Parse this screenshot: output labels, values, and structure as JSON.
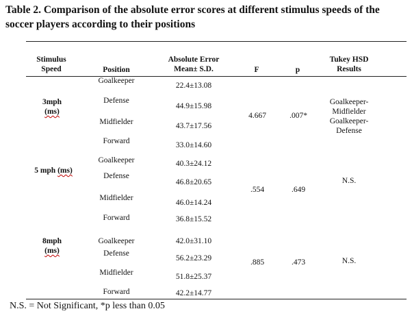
{
  "title": "Table 2. Comparison of the absolute error scores at different stimulus speeds of the soccer players according to their positions",
  "headers": {
    "stimulus_speed": [
      "Stimulus",
      "Speed"
    ],
    "position": "Position",
    "absolute_error": [
      "Absolute Error",
      "Mean± S.D."
    ],
    "f": "F",
    "p": "p",
    "tukey": [
      "Tukey HSD",
      "Results"
    ]
  },
  "groups": [
    {
      "speed_value": "3mph",
      "speed_unit": "(ms)",
      "rows": [
        {
          "position": "Goalkeeper",
          "mean_sd": "22.4±13.08"
        },
        {
          "position": "Defense",
          "mean_sd": "44.9±15.98"
        },
        {
          "position": "Midfielder",
          "mean_sd": "43.7±17.56"
        },
        {
          "position": "Forward",
          "mean_sd": "33.0±14.60"
        }
      ],
      "f": "4.667",
      "p": ".007*",
      "tukey": [
        "Goalkeeper-",
        "Midfielder",
        "Goalkeeper-",
        "Defense"
      ]
    },
    {
      "speed_value": "5 mph",
      "speed_unit": "(ms)",
      "rows": [
        {
          "position": "Goalkeeper",
          "mean_sd": "40.3±24.12"
        },
        {
          "position": "Defense",
          "mean_sd": "46.8±20.65"
        },
        {
          "position": "Midfielder",
          "mean_sd": "46.0±14.24"
        },
        {
          "position": "Forward",
          "mean_sd": "36.8±15.52"
        }
      ],
      "f": ".554",
      "p": ".649",
      "tukey": [
        "N.S."
      ]
    },
    {
      "speed_value": "8mph",
      "speed_unit": "(ms)",
      "rows": [
        {
          "position": "Goalkeeper",
          "mean_sd": "42.0±31.10"
        },
        {
          "position": "Defense",
          "mean_sd": "56.2±23.29"
        },
        {
          "position": "Midfielder",
          "mean_sd": "51.8±25.37"
        },
        {
          "position": "Forward",
          "mean_sd": "42.2±14.77"
        }
      ],
      "f": ".885",
      "p": ".473",
      "tukey": [
        "N.S."
      ]
    }
  ],
  "footnote": "N.S. = Not Significant, *p less than 0.05"
}
